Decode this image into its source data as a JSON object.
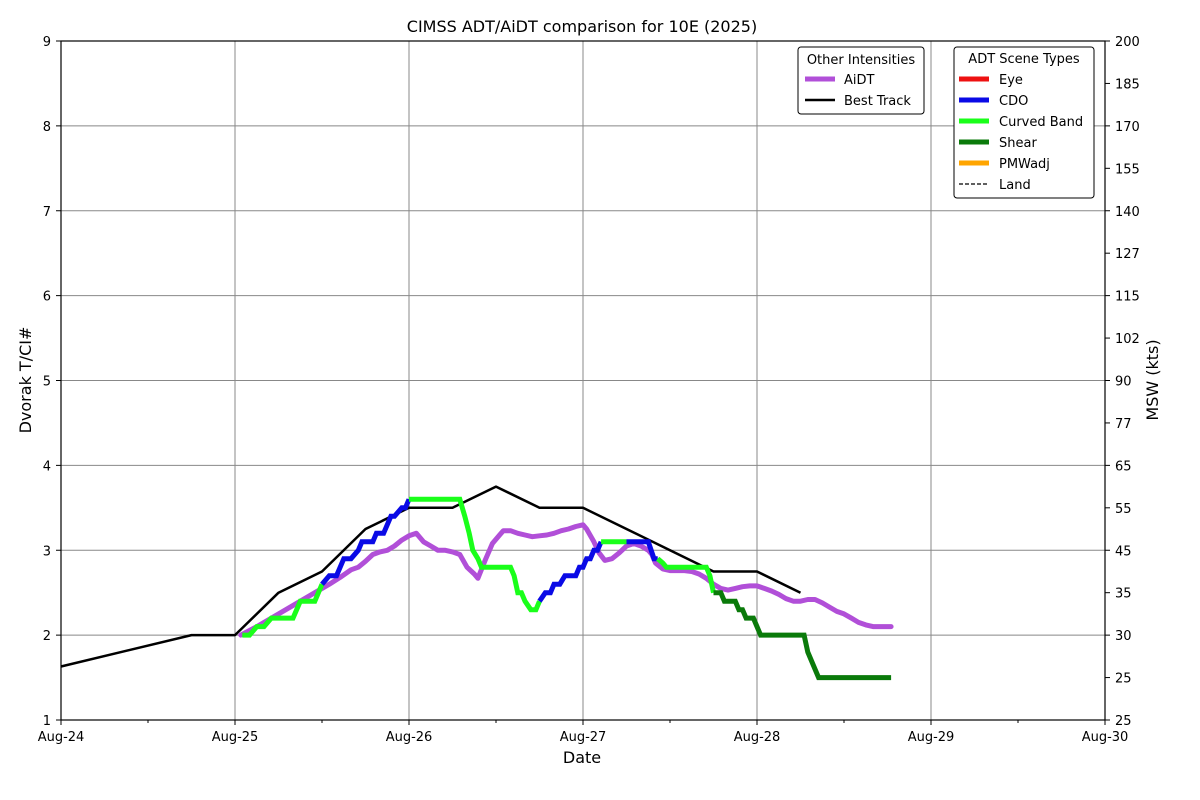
{
  "chart_data": {
    "type": "line",
    "title": "CIMSS ADT/AiDT comparison for 10E (2025)",
    "xlabel": "Date",
    "ylabel_left": "Dvorak T/CI#",
    "ylabel_right": "MSW (kts)",
    "x_range_hours": [
      0,
      144
    ],
    "xticks": [
      {
        "label": "Aug-24",
        "h": 0
      },
      {
        "label": "Aug-25",
        "h": 24
      },
      {
        "label": "Aug-26",
        "h": 48
      },
      {
        "label": "Aug-27",
        "h": 72
      },
      {
        "label": "Aug-28",
        "h": 96
      },
      {
        "label": "Aug-29",
        "h": 120
      },
      {
        "label": "Aug-30",
        "h": 144
      }
    ],
    "ylim": [
      1,
      9
    ],
    "yticks_left": [
      "1",
      "2",
      "3",
      "4",
      "5",
      "6",
      "7",
      "8",
      "9"
    ],
    "yticks_right": [
      {
        "t": 1.0,
        "label": "25"
      },
      {
        "t": 1.5,
        "label": "25"
      },
      {
        "t": 2.0,
        "label": "30"
      },
      {
        "t": 2.5,
        "label": "35"
      },
      {
        "t": 3.0,
        "label": "45"
      },
      {
        "t": 3.5,
        "label": "55"
      },
      {
        "t": 4.0,
        "label": "65"
      },
      {
        "t": 4.5,
        "label": "77"
      },
      {
        "t": 5.0,
        "label": "90"
      },
      {
        "t": 5.5,
        "label": "102"
      },
      {
        "t": 6.0,
        "label": "115"
      },
      {
        "t": 6.5,
        "label": "127"
      },
      {
        "t": 7.0,
        "label": "140"
      },
      {
        "t": 7.5,
        "label": "155"
      },
      {
        "t": 8.0,
        "label": "170"
      },
      {
        "t": 8.5,
        "label": "185"
      },
      {
        "t": 9.0,
        "label": "200"
      }
    ],
    "grid": true,
    "legend_other": {
      "title": "Other Intensities",
      "placement": "top-right",
      "entries": [
        {
          "label": "AiDT",
          "color": "#b14fd8",
          "style": "solid"
        },
        {
          "label": "Best Track",
          "color": "#000000",
          "style": "solid"
        }
      ]
    },
    "legend_scene": {
      "title": "ADT Scene Types",
      "placement": "top-right",
      "entries": [
        {
          "label": "Eye",
          "color": "#ee1111",
          "style": "solid"
        },
        {
          "label": "CDO",
          "color": "#0a0ae6",
          "style": "solid"
        },
        {
          "label": "Curved Band",
          "color": "#1aff1a",
          "style": "solid"
        },
        {
          "label": "Shear",
          "color": "#0a7a0a",
          "style": "solid"
        },
        {
          "label": "PMWadj",
          "color": "#ffa500",
          "style": "solid"
        },
        {
          "label": "Land",
          "color": "#000000",
          "style": "dashed"
        }
      ]
    },
    "series": [
      {
        "name": "Best Track",
        "color": "#000000",
        "points": [
          [
            0,
            1.63
          ],
          [
            18,
            2.0
          ],
          [
            24,
            2.0
          ],
          [
            30,
            2.5
          ],
          [
            36,
            2.75
          ],
          [
            42,
            3.25
          ],
          [
            48,
            3.5
          ],
          [
            54,
            3.5
          ],
          [
            60,
            3.75
          ],
          [
            66,
            3.5
          ],
          [
            72,
            3.5
          ],
          [
            78,
            3.25
          ],
          [
            84,
            3.0
          ],
          [
            90,
            2.75
          ],
          [
            96,
            2.75
          ],
          [
            102,
            2.5
          ]
        ]
      },
      {
        "name": "AiDT",
        "color": "#b14fd8",
        "points": [
          [
            24.8,
            2.0
          ],
          [
            27,
            2.1
          ],
          [
            29,
            2.2
          ],
          [
            31,
            2.3
          ],
          [
            33,
            2.4
          ],
          [
            35,
            2.5
          ],
          [
            37,
            2.6
          ],
          [
            38.5,
            2.68
          ],
          [
            40,
            2.77
          ],
          [
            41,
            2.8
          ],
          [
            42,
            2.87
          ],
          [
            43,
            2.95
          ],
          [
            44,
            2.98
          ],
          [
            45,
            3.0
          ],
          [
            46,
            3.05
          ],
          [
            47,
            3.12
          ],
          [
            48,
            3.17
          ],
          [
            49,
            3.2
          ],
          [
            50,
            3.1
          ],
          [
            51,
            3.05
          ],
          [
            52,
            3.0
          ],
          [
            53,
            3.0
          ],
          [
            54,
            2.98
          ],
          [
            55,
            2.95
          ],
          [
            56,
            2.8
          ],
          [
            57,
            2.72
          ],
          [
            57.5,
            2.67
          ],
          [
            58.5,
            2.88
          ],
          [
            59.5,
            3.08
          ],
          [
            60.5,
            3.18
          ],
          [
            61,
            3.23
          ],
          [
            62,
            3.23
          ],
          [
            63,
            3.2
          ],
          [
            64,
            3.18
          ],
          [
            65,
            3.16
          ],
          [
            66,
            3.17
          ],
          [
            67,
            3.18
          ],
          [
            68,
            3.2
          ],
          [
            69,
            3.23
          ],
          [
            70,
            3.25
          ],
          [
            71,
            3.28
          ],
          [
            72,
            3.3
          ],
          [
            72.5,
            3.25
          ],
          [
            73.5,
            3.1
          ],
          [
            74.2,
            2.97
          ],
          [
            75,
            2.88
          ],
          [
            76,
            2.9
          ],
          [
            77,
            2.97
          ],
          [
            78,
            3.05
          ],
          [
            79,
            3.08
          ],
          [
            80,
            3.05
          ],
          [
            81,
            3.0
          ],
          [
            81.5,
            2.95
          ],
          [
            82,
            2.85
          ],
          [
            83,
            2.78
          ],
          [
            84,
            2.76
          ],
          [
            86,
            2.76
          ],
          [
            87,
            2.75
          ],
          [
            88,
            2.72
          ],
          [
            89,
            2.67
          ],
          [
            90,
            2.6
          ],
          [
            91,
            2.55
          ],
          [
            92,
            2.53
          ],
          [
            93,
            2.55
          ],
          [
            94,
            2.57
          ],
          [
            95,
            2.58
          ],
          [
            96,
            2.58
          ],
          [
            97,
            2.55
          ],
          [
            98,
            2.52
          ],
          [
            99,
            2.48
          ],
          [
            100,
            2.43
          ],
          [
            101,
            2.4
          ],
          [
            102,
            2.4
          ],
          [
            103,
            2.42
          ],
          [
            104,
            2.42
          ],
          [
            105,
            2.38
          ],
          [
            106,
            2.33
          ],
          [
            107,
            2.28
          ],
          [
            108,
            2.25
          ],
          [
            109,
            2.2
          ],
          [
            110,
            2.15
          ],
          [
            111,
            2.12
          ],
          [
            112,
            2.1
          ],
          [
            114,
            2.1
          ],
          [
            114.5,
            2.1
          ]
        ]
      },
      {
        "name": "ADT",
        "segments": [
          {
            "scene": "Curved Band",
            "points": [
              [
                25,
                2.0
              ],
              [
                26,
                2.0
              ],
              [
                27,
                2.1
              ],
              [
                28,
                2.1
              ],
              [
                29,
                2.2
              ],
              [
                32,
                2.2
              ],
              [
                33,
                2.4
              ],
              [
                35,
                2.4
              ],
              [
                36,
                2.6
              ]
            ]
          },
          {
            "scene": "CDO",
            "points": [
              [
                36,
                2.6
              ],
              [
                37,
                2.7
              ],
              [
                38,
                2.7
              ],
              [
                39,
                2.9
              ],
              [
                40,
                2.9
              ],
              [
                41,
                3.0
              ],
              [
                41.5,
                3.1
              ],
              [
                43,
                3.1
              ],
              [
                43.5,
                3.2
              ],
              [
                44.5,
                3.2
              ],
              [
                45.5,
                3.4
              ],
              [
                46,
                3.4
              ],
              [
                47,
                3.5
              ],
              [
                47.5,
                3.5
              ],
              [
                48,
                3.6
              ]
            ]
          },
          {
            "scene": "Curved Band",
            "points": [
              [
                48,
                3.6
              ],
              [
                55,
                3.6
              ],
              [
                55.7,
                3.4
              ],
              [
                56.3,
                3.2
              ],
              [
                56.8,
                3.0
              ],
              [
                57.5,
                2.9
              ],
              [
                58,
                2.8
              ],
              [
                62,
                2.8
              ],
              [
                62.5,
                2.7
              ],
              [
                63,
                2.5
              ],
              [
                63.5,
                2.5
              ],
              [
                64,
                2.4
              ],
              [
                64.8,
                2.3
              ],
              [
                65.5,
                2.3
              ],
              [
                66,
                2.4
              ]
            ]
          },
          {
            "scene": "CDO",
            "points": [
              [
                66,
                2.4
              ],
              [
                66.8,
                2.5
              ],
              [
                67.5,
                2.5
              ],
              [
                68,
                2.6
              ],
              [
                68.8,
                2.6
              ],
              [
                69.5,
                2.7
              ],
              [
                71,
                2.7
              ],
              [
                71.5,
                2.8
              ],
              [
                72,
                2.8
              ],
              [
                72.5,
                2.9
              ],
              [
                73,
                2.9
              ],
              [
                73.5,
                3.0
              ],
              [
                74,
                3.0
              ],
              [
                74.5,
                3.1
              ]
            ]
          },
          {
            "scene": "Curved Band",
            "points": [
              [
                74.5,
                3.1
              ],
              [
                78,
                3.1
              ]
            ]
          },
          {
            "scene": "CDO",
            "points": [
              [
                78,
                3.1
              ],
              [
                81,
                3.1
              ],
              [
                81.8,
                2.9
              ],
              [
                82.3,
                2.9
              ]
            ]
          },
          {
            "scene": "Curved Band",
            "points": [
              [
                82.3,
                2.9
              ],
              [
                83,
                2.85
              ],
              [
                83.5,
                2.8
              ],
              [
                89,
                2.8
              ],
              [
                89.5,
                2.7
              ],
              [
                90,
                2.5
              ]
            ]
          },
          {
            "scene": "Shear",
            "points": [
              [
                90,
                2.5
              ],
              [
                91,
                2.5
              ],
              [
                91.5,
                2.4
              ],
              [
                93,
                2.4
              ],
              [
                93.5,
                2.3
              ],
              [
                94,
                2.3
              ],
              [
                94.5,
                2.2
              ],
              [
                95.5,
                2.2
              ],
              [
                96,
                2.1
              ],
              [
                96.5,
                2.0
              ],
              [
                102.5,
                2.0
              ],
              [
                103,
                1.8
              ],
              [
                104.5,
                1.5
              ],
              [
                114.5,
                1.5
              ]
            ]
          }
        ]
      }
    ]
  }
}
